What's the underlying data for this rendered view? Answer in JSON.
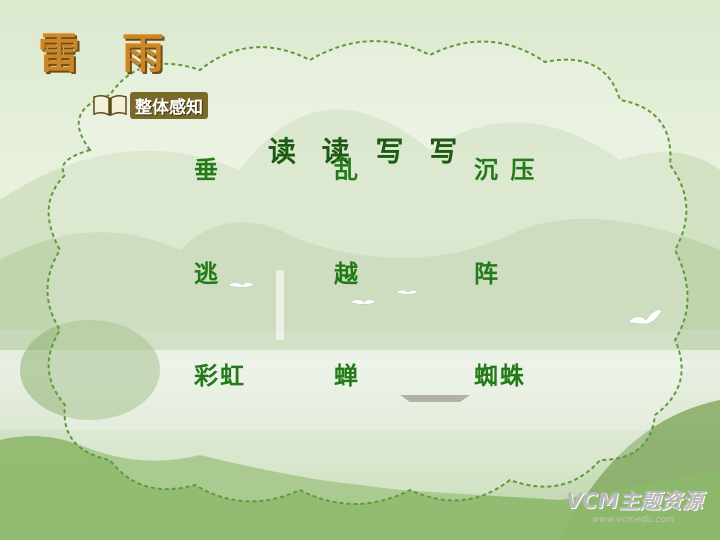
{
  "title": {
    "char_1": "雷",
    "char_2": "雨"
  },
  "section_tag": {
    "label": "整体感知",
    "icon": "open-book-icon"
  },
  "heading": "读 读 写 写",
  "words": {
    "r1c1": "垂",
    "r1c2": "乱",
    "r1c3": "沉 压",
    "r2c1": "逃",
    "r2c2": "越",
    "r2c3": "阵",
    "r3c1": "彩虹",
    "r3c2": "蝉",
    "r3c3": "蜘蛛"
  },
  "watermark": {
    "main": "VCM主题资源",
    "url": "www.vcmedu.com"
  },
  "colors": {
    "word": "#237a18",
    "heading": "#1d5a12",
    "title": "#c9872a",
    "cloud_border": "#5f9a3a"
  }
}
